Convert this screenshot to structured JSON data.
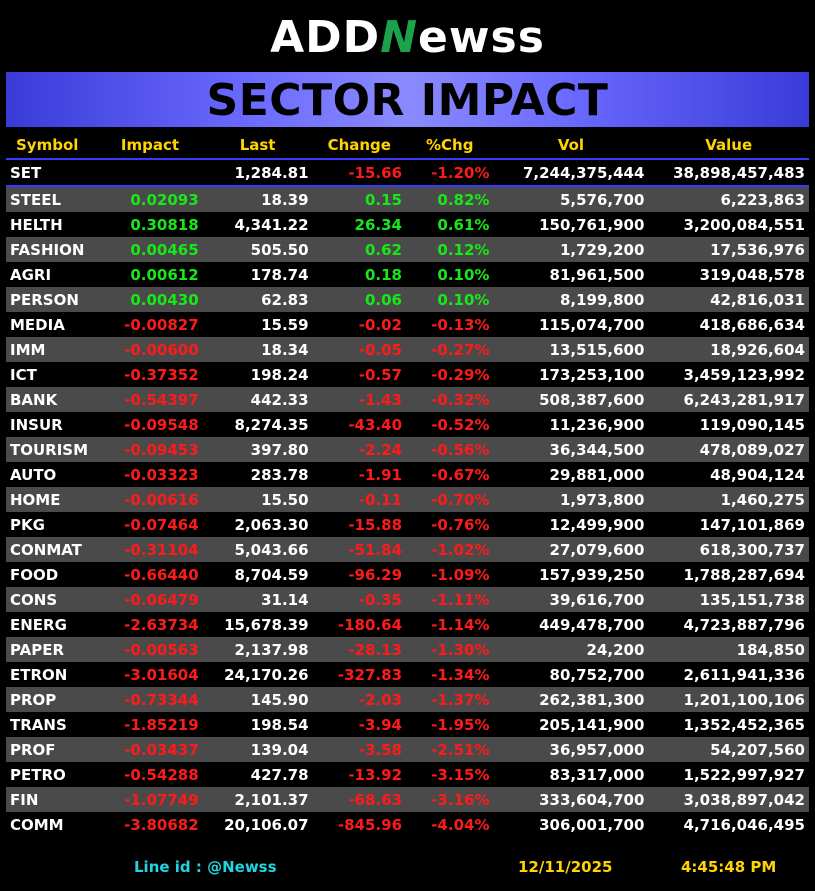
{
  "brand": {
    "part1": "ADD",
    "part2": "N",
    "part3": "ewss"
  },
  "title": "SECTOR IMPACT",
  "columns": [
    "Symbol",
    "Impact",
    "Last",
    "Change",
    "%Chg",
    "Vol",
    "Value"
  ],
  "index_row": {
    "symbol": "SET",
    "impact": "",
    "last": "1,284.81",
    "change": "-15.66",
    "pct": "-1.20%",
    "vol": "7,244,375,444",
    "value": "38,898,457,483",
    "dir": "neg"
  },
  "rows": [
    {
      "symbol": "STEEL",
      "impact": "0.02093",
      "last": "18.39",
      "change": "0.15",
      "pct": "0.82%",
      "vol": "5,576,700",
      "value": "6,223,863",
      "dir": "pos"
    },
    {
      "symbol": "HELTH",
      "impact": "0.30818",
      "last": "4,341.22",
      "change": "26.34",
      "pct": "0.61%",
      "vol": "150,761,900",
      "value": "3,200,084,551",
      "dir": "pos"
    },
    {
      "symbol": "FASHION",
      "impact": "0.00465",
      "last": "505.50",
      "change": "0.62",
      "pct": "0.12%",
      "vol": "1,729,200",
      "value": "17,536,976",
      "dir": "pos"
    },
    {
      "symbol": "AGRI",
      "impact": "0.00612",
      "last": "178.74",
      "change": "0.18",
      "pct": "0.10%",
      "vol": "81,961,500",
      "value": "319,048,578",
      "dir": "pos"
    },
    {
      "symbol": "PERSON",
      "impact": "0.00430",
      "last": "62.83",
      "change": "0.06",
      "pct": "0.10%",
      "vol": "8,199,800",
      "value": "42,816,031",
      "dir": "pos"
    },
    {
      "symbol": "MEDIA",
      "impact": "-0.00827",
      "last": "15.59",
      "change": "-0.02",
      "pct": "-0.13%",
      "vol": "115,074,700",
      "value": "418,686,634",
      "dir": "neg"
    },
    {
      "symbol": "IMM",
      "impact": "-0.00600",
      "last": "18.34",
      "change": "-0.05",
      "pct": "-0.27%",
      "vol": "13,515,600",
      "value": "18,926,604",
      "dir": "neg"
    },
    {
      "symbol": "ICT",
      "impact": "-0.37352",
      "last": "198.24",
      "change": "-0.57",
      "pct": "-0.29%",
      "vol": "173,253,100",
      "value": "3,459,123,992",
      "dir": "neg"
    },
    {
      "symbol": "BANK",
      "impact": "-0.54397",
      "last": "442.33",
      "change": "-1.43",
      "pct": "-0.32%",
      "vol": "508,387,600",
      "value": "6,243,281,917",
      "dir": "neg"
    },
    {
      "symbol": "INSUR",
      "impact": "-0.09548",
      "last": "8,274.35",
      "change": "-43.40",
      "pct": "-0.52%",
      "vol": "11,236,900",
      "value": "119,090,145",
      "dir": "neg"
    },
    {
      "symbol": "TOURISM",
      "impact": "-0.09453",
      "last": "397.80",
      "change": "-2.24",
      "pct": "-0.56%",
      "vol": "36,344,500",
      "value": "478,089,027",
      "dir": "neg"
    },
    {
      "symbol": "AUTO",
      "impact": "-0.03323",
      "last": "283.78",
      "change": "-1.91",
      "pct": "-0.67%",
      "vol": "29,881,000",
      "value": "48,904,124",
      "dir": "neg"
    },
    {
      "symbol": "HOME",
      "impact": "-0.00616",
      "last": "15.50",
      "change": "-0.11",
      "pct": "-0.70%",
      "vol": "1,973,800",
      "value": "1,460,275",
      "dir": "neg"
    },
    {
      "symbol": "PKG",
      "impact": "-0.07464",
      "last": "2,063.30",
      "change": "-15.88",
      "pct": "-0.76%",
      "vol": "12,499,900",
      "value": "147,101,869",
      "dir": "neg"
    },
    {
      "symbol": "CONMAT",
      "impact": "-0.31104",
      "last": "5,043.66",
      "change": "-51.84",
      "pct": "-1.02%",
      "vol": "27,079,600",
      "value": "618,300,737",
      "dir": "neg"
    },
    {
      "symbol": "FOOD",
      "impact": "-0.66440",
      "last": "8,704.59",
      "change": "-96.29",
      "pct": "-1.09%",
      "vol": "157,939,250",
      "value": "1,788,287,694",
      "dir": "neg"
    },
    {
      "symbol": "CONS",
      "impact": "-0.06479",
      "last": "31.14",
      "change": "-0.35",
      "pct": "-1.11%",
      "vol": "39,616,700",
      "value": "135,151,738",
      "dir": "neg"
    },
    {
      "symbol": "ENERG",
      "impact": "-2.63734",
      "last": "15,678.39",
      "change": "-180.64",
      "pct": "-1.14%",
      "vol": "449,478,700",
      "value": "4,723,887,796",
      "dir": "neg"
    },
    {
      "symbol": "PAPER",
      "impact": "-0.00563",
      "last": "2,137.98",
      "change": "-28.13",
      "pct": "-1.30%",
      "vol": "24,200",
      "value": "184,850",
      "dir": "neg"
    },
    {
      "symbol": "ETRON",
      "impact": "-3.01604",
      "last": "24,170.26",
      "change": "-327.83",
      "pct": "-1.34%",
      "vol": "80,752,700",
      "value": "2,611,941,336",
      "dir": "neg"
    },
    {
      "symbol": "PROP",
      "impact": "-0.73344",
      "last": "145.90",
      "change": "-2.03",
      "pct": "-1.37%",
      "vol": "262,381,300",
      "value": "1,201,100,106",
      "dir": "neg"
    },
    {
      "symbol": "TRANS",
      "impact": "-1.85219",
      "last": "198.54",
      "change": "-3.94",
      "pct": "-1.95%",
      "vol": "205,141,900",
      "value": "1,352,452,365",
      "dir": "neg"
    },
    {
      "symbol": "PROF",
      "impact": "-0.03437",
      "last": "139.04",
      "change": "-3.58",
      "pct": "-2.51%",
      "vol": "36,957,000",
      "value": "54,207,560",
      "dir": "neg"
    },
    {
      "symbol": "PETRO",
      "impact": "-0.54288",
      "last": "427.78",
      "change": "-13.92",
      "pct": "-3.15%",
      "vol": "83,317,000",
      "value": "1,522,997,927",
      "dir": "neg"
    },
    {
      "symbol": "FIN",
      "impact": "-1.07749",
      "last": "2,101.37",
      "change": "-68.63",
      "pct": "-3.16%",
      "vol": "333,604,700",
      "value": "3,038,897,042",
      "dir": "neg"
    },
    {
      "symbol": "COMM",
      "impact": "-3.80682",
      "last": "20,106.07",
      "change": "-845.96",
      "pct": "-4.04%",
      "vol": "306,001,700",
      "value": "4,716,046,495",
      "dir": "neg"
    }
  ],
  "footer": {
    "line_id": "Line id  : @Newss",
    "date": "12/11/2025",
    "time": "4:45:48 PM"
  },
  "colors": {
    "positive": "#17e817",
    "negative": "#ff1a1a",
    "header": "#ffd400",
    "banner": "#6a6aff"
  }
}
